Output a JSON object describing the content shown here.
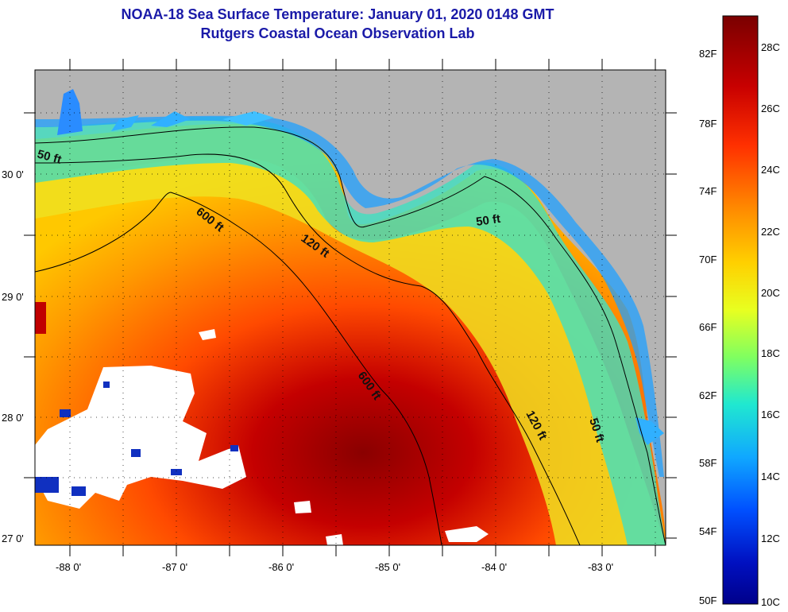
{
  "header": {
    "title": "NOAA-18 Sea Surface Temperature:  January 01, 2020 0148 GMT",
    "subtitle": "Rutgers Coastal Ocean Observation Lab"
  },
  "map": {
    "lat_labels": [
      "30 0'",
      "29 0'",
      "28 0'",
      "27 0'"
    ],
    "lon_labels": [
      "-88 0'",
      "-87 0'",
      "-86 0'",
      "-85 0'",
      "-84 0'",
      "-83 0'"
    ],
    "contour_labels": [
      "50 ft",
      "600 ft",
      "120 ft",
      "50 ft",
      "600 ft",
      "120 ft",
      "50 ft"
    ],
    "colors": {
      "land": "#b4b4b4",
      "cloud": "#ffffff",
      "frame": "#000000"
    }
  },
  "colorbar": {
    "fahrenheit_labels": [
      "82F",
      "78F",
      "74F",
      "70F",
      "66F",
      "62F",
      "58F",
      "54F",
      "50F"
    ],
    "celsius_labels": [
      "28C",
      "26C",
      "24C",
      "22C",
      "20C",
      "18C",
      "16C",
      "14C",
      "12C",
      "10C"
    ],
    "colors": [
      "#7a0000",
      "#c80000",
      "#ff3000",
      "#ff8c00",
      "#ffd000",
      "#e8ff20",
      "#80ff60",
      "#20e8d0",
      "#10a8ff",
      "#0050ff",
      "#0010c0",
      "#00008a"
    ]
  }
}
